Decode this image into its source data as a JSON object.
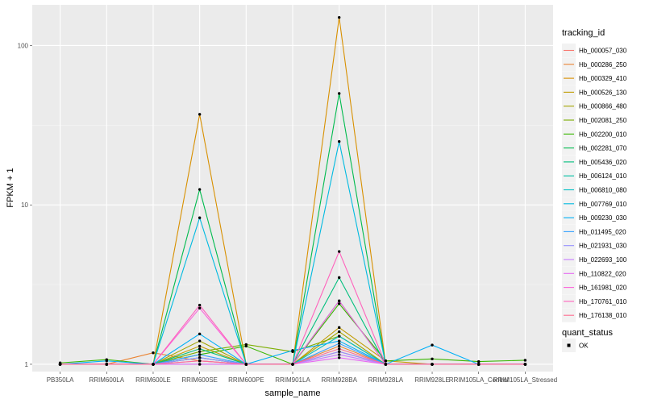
{
  "chart_data": {
    "type": "line",
    "yscale": "log10",
    "xlabel": "sample_name",
    "ylabel": "FPKM + 1",
    "ylim": [
      0.9,
      180
    ],
    "yticks": [
      1,
      10,
      100
    ],
    "ytick_labels": [
      "1",
      "10",
      "100"
    ],
    "categories": [
      "PB350LA",
      "RRIM600LA",
      "RRIM600LE",
      "RRIM600SE",
      "RRIM600PE",
      "RRIM901LA",
      "RRIM928BA",
      "RRIM928LA",
      "RRIM928LE",
      "RRIM105LA_Control",
      "RRIM105LA_Stressed"
    ],
    "legend": {
      "title": "tracking_id",
      "entries": [
        "Hb_000057_030",
        "Hb_000286_250",
        "Hb_000329_410",
        "Hb_000526_130",
        "Hb_000866_480",
        "Hb_002081_250",
        "Hb_002200_010",
        "Hb_002281_070",
        "Hb_005436_020",
        "Hb_006124_010",
        "Hb_006810_080",
        "Hb_007769_010",
        "Hb_009230_030",
        "Hb_011495_020",
        "Hb_021931_030",
        "Hb_022693_100",
        "Hb_110822_020",
        "Hb_161981_020",
        "Hb_170761_010",
        "Hb_176138_010"
      ]
    },
    "legend2": {
      "title": "quant_status",
      "entries": [
        "OK"
      ]
    },
    "series": [
      {
        "name": "Hb_000057_030",
        "color": "#F8766D",
        "values": [
          1.0,
          1.0,
          1.0,
          1.1,
          1.0,
          1.0,
          1.2,
          1.0,
          1.0,
          1.0,
          1.0
        ]
      },
      {
        "name": "Hb_000286_250",
        "color": "#EA8331",
        "values": [
          1.0,
          1.0,
          1.18,
          1.05,
          1.0,
          1.0,
          1.3,
          1.0,
          1.0,
          1.0,
          1.0
        ]
      },
      {
        "name": "Hb_000329_410",
        "color": "#D89000",
        "values": [
          1.0,
          1.0,
          1.0,
          37.0,
          1.0,
          1.0,
          150.0,
          1.0,
          1.0,
          1.0,
          1.0
        ]
      },
      {
        "name": "Hb_000526_130",
        "color": "#C09B00",
        "values": [
          1.0,
          1.0,
          1.0,
          1.3,
          1.0,
          1.0,
          1.7,
          1.05,
          1.0,
          1.0,
          1.0
        ]
      },
      {
        "name": "Hb_000866_480",
        "color": "#A3A500",
        "values": [
          1.0,
          1.0,
          1.0,
          1.4,
          1.0,
          1.0,
          1.6,
          1.0,
          1.0,
          1.0,
          1.0
        ]
      },
      {
        "name": "Hb_002081_250",
        "color": "#7CAE00",
        "values": [
          1.0,
          1.0,
          1.0,
          1.2,
          1.33,
          1.2,
          1.5,
          1.0,
          1.0,
          1.0,
          1.0
        ]
      },
      {
        "name": "Hb_002200_010",
        "color": "#39B600",
        "values": [
          1.02,
          1.07,
          1.0,
          1.15,
          1.3,
          1.0,
          2.4,
          1.05,
          1.08,
          1.04,
          1.06
        ]
      },
      {
        "name": "Hb_002281_070",
        "color": "#00BB4E",
        "values": [
          1.0,
          1.0,
          1.0,
          12.5,
          1.0,
          1.0,
          50.0,
          1.0,
          1.0,
          1.0,
          1.0
        ]
      },
      {
        "name": "Hb_005436_020",
        "color": "#00BF7D",
        "values": [
          1.0,
          1.0,
          1.0,
          1.25,
          1.0,
          1.0,
          3.5,
          1.0,
          1.0,
          1.0,
          1.0
        ]
      },
      {
        "name": "Hb_006124_010",
        "color": "#00C1A3",
        "values": [
          1.0,
          1.0,
          1.0,
          1.1,
          1.0,
          1.0,
          2.5,
          1.0,
          1.0,
          1.0,
          1.0
        ]
      },
      {
        "name": "Hb_006810_080",
        "color": "#00BFC4",
        "values": [
          1.0,
          1.0,
          1.0,
          1.0,
          1.0,
          1.0,
          1.5,
          1.0,
          1.0,
          1.0,
          1.0
        ]
      },
      {
        "name": "Hb_007769_010",
        "color": "#00BAE0",
        "values": [
          1.0,
          1.0,
          1.0,
          8.3,
          1.0,
          1.0,
          25.0,
          1.0,
          1.0,
          1.0,
          1.0
        ]
      },
      {
        "name": "Hb_009230_030",
        "color": "#00B0F6",
        "values": [
          1.0,
          1.05,
          1.0,
          1.55,
          1.0,
          1.22,
          1.4,
          1.0,
          1.32,
          1.0,
          1.0
        ]
      },
      {
        "name": "Hb_011495_020",
        "color": "#35A2FF",
        "values": [
          1.0,
          1.0,
          1.0,
          1.15,
          1.0,
          1.0,
          1.35,
          1.0,
          1.0,
          1.0,
          1.0
        ]
      },
      {
        "name": "Hb_021931_030",
        "color": "#9590FF",
        "values": [
          1.0,
          1.0,
          1.0,
          1.1,
          1.0,
          1.0,
          1.2,
          1.0,
          1.0,
          1.0,
          1.0
        ]
      },
      {
        "name": "Hb_022693_100",
        "color": "#C77CFF",
        "values": [
          1.0,
          1.0,
          1.0,
          1.05,
          1.0,
          1.0,
          1.15,
          1.0,
          1.0,
          1.0,
          1.0
        ]
      },
      {
        "name": "Hb_110822_020",
        "color": "#E76BF3",
        "values": [
          1.0,
          1.0,
          1.0,
          1.0,
          1.0,
          1.0,
          1.1,
          1.0,
          1.0,
          1.0,
          1.0
        ]
      },
      {
        "name": "Hb_161981_020",
        "color": "#FA62DB",
        "values": [
          1.0,
          1.0,
          1.0,
          2.25,
          1.0,
          1.0,
          2.5,
          1.0,
          1.0,
          1.0,
          1.0
        ]
      },
      {
        "name": "Hb_170761_010",
        "color": "#FF62BC",
        "values": [
          1.0,
          1.0,
          1.0,
          2.35,
          1.0,
          1.0,
          5.1,
          1.0,
          1.0,
          1.0,
          1.0
        ]
      },
      {
        "name": "Hb_176138_010",
        "color": "#FF6C91",
        "values": [
          1.0,
          1.0,
          1.0,
          1.05,
          1.0,
          1.0,
          1.25,
          1.0,
          1.0,
          1.0,
          1.0
        ]
      }
    ]
  }
}
